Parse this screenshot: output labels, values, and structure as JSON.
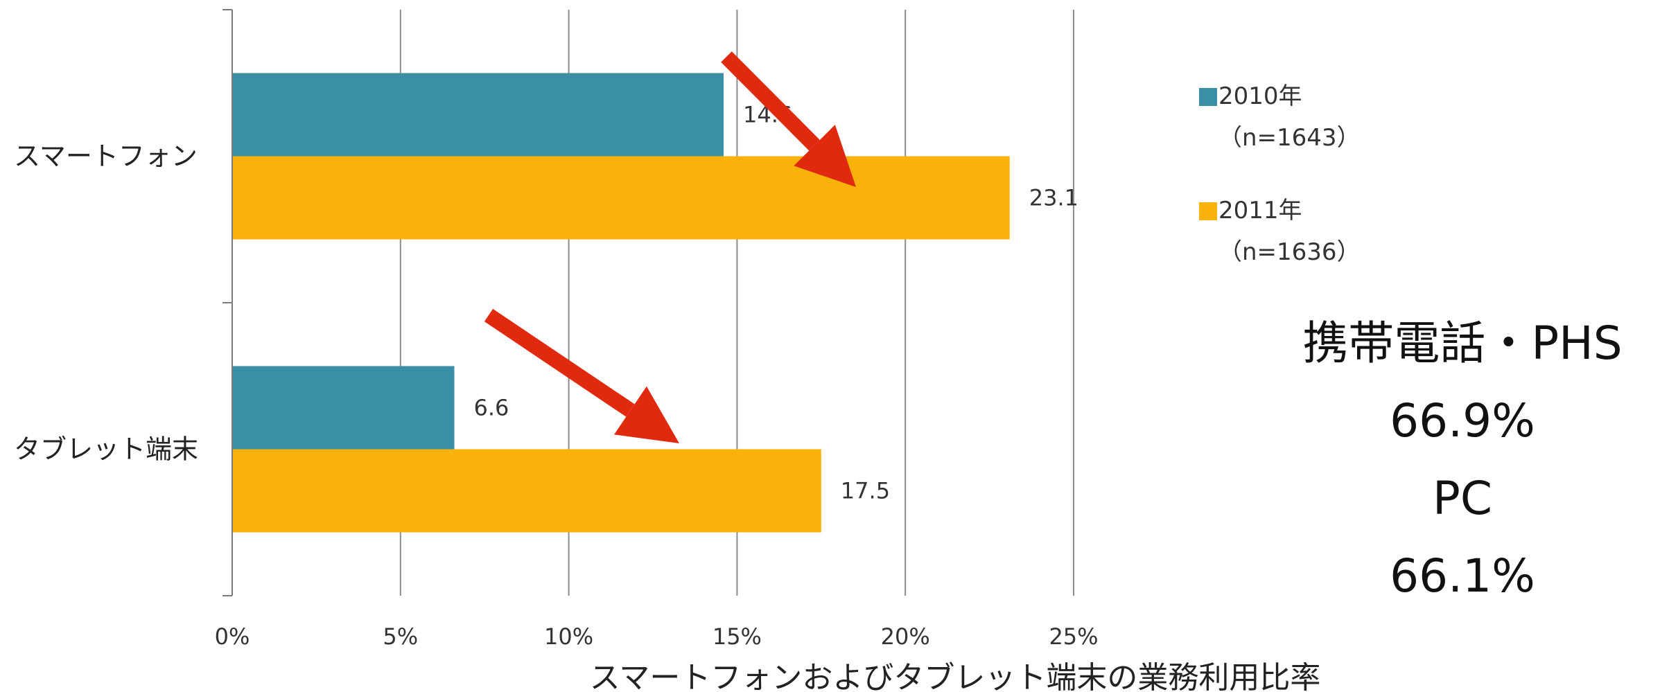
{
  "chart_data": {
    "type": "bar",
    "orientation": "horizontal",
    "categories": [
      "スマートフォン",
      "タブレット端末"
    ],
    "series": [
      {
        "name": "2010年",
        "sub": "（n=1643）",
        "values": [
          14.6,
          6.6
        ],
        "labels": [
          "14.6",
          "6.6"
        ],
        "color": "#3a8fa6"
      },
      {
        "name": "2011年",
        "sub": "（n=1636）",
        "values": [
          23.1,
          17.5
        ],
        "labels": [
          "23.1",
          "17.5"
        ],
        "color": "#f9b10c"
      }
    ],
    "xlim": [
      0,
      25
    ],
    "xticks": [
      "0%",
      "5%",
      "10%",
      "15%",
      "20%",
      "25%"
    ],
    "xlabel": "スマートフォンおよびタブレット端末の業務利用比率",
    "grid": true,
    "legend_position": "right",
    "annotation_arrow_color": "#e02a10"
  },
  "side_stats": [
    "携帯電話・PHS",
    "66.9%",
    "PC",
    "66.1%"
  ]
}
